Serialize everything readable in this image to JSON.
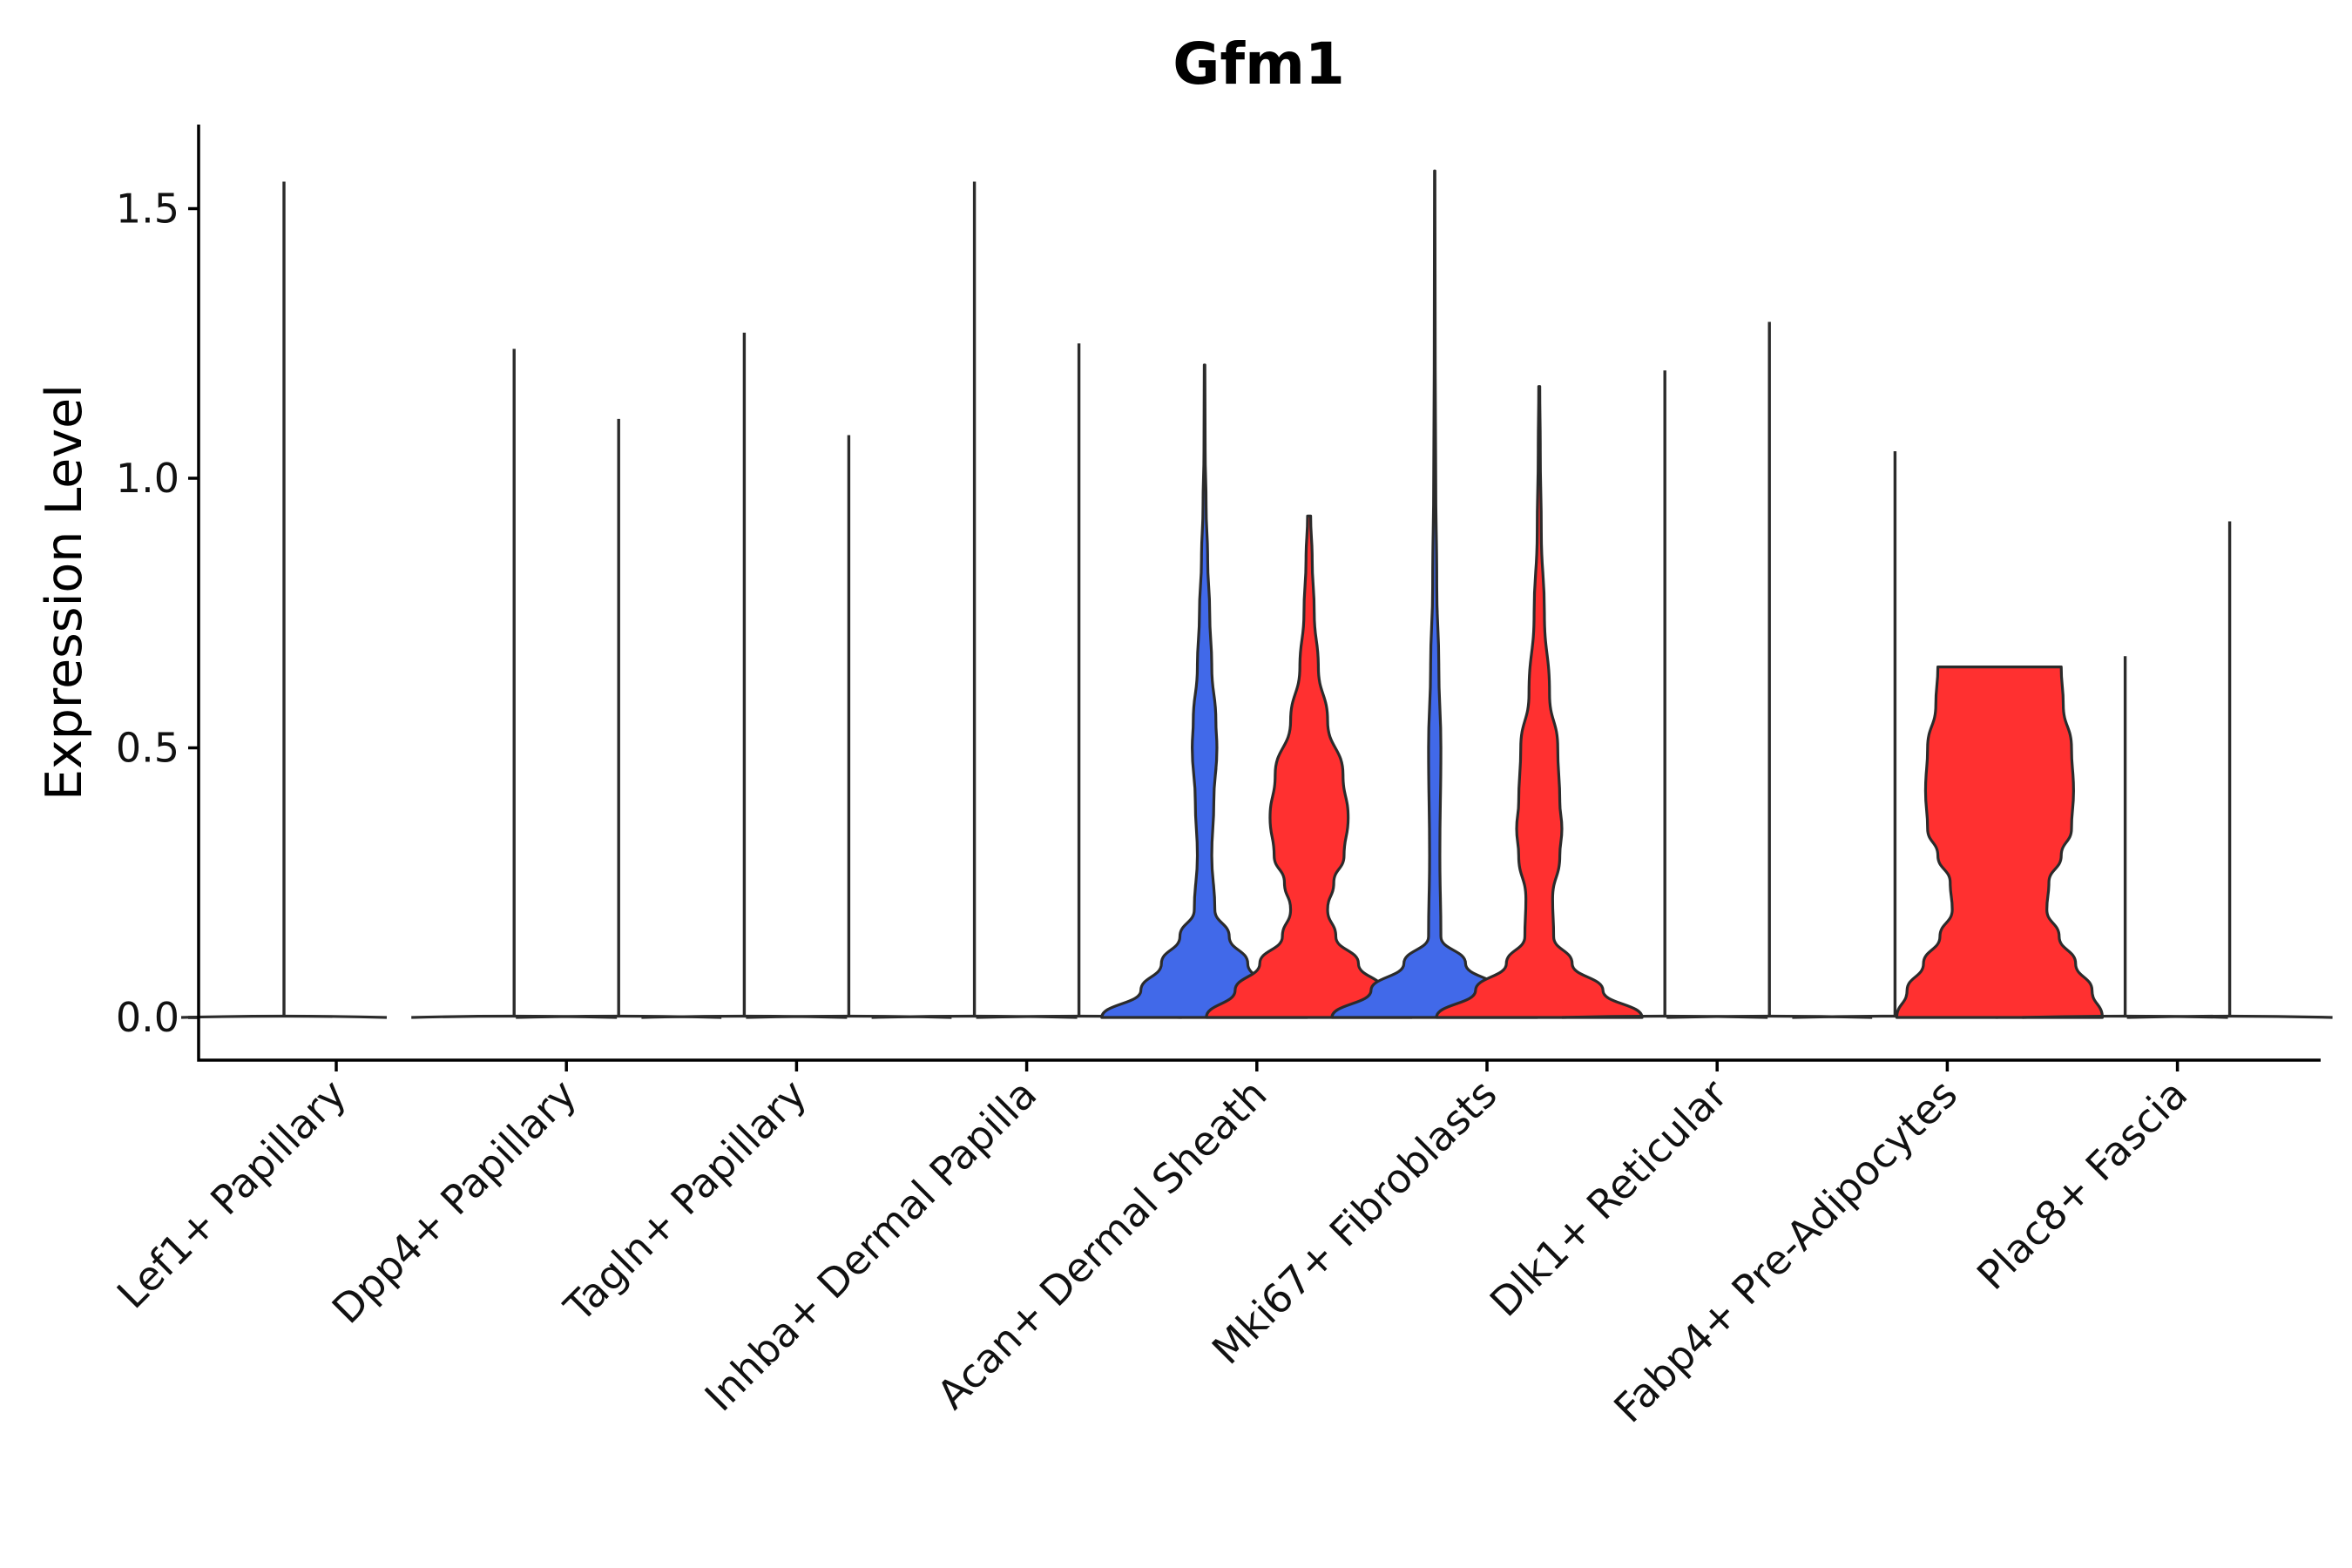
{
  "chart_data": {
    "type": "violin",
    "title": "Gfm1",
    "xlabel": "",
    "ylabel": "Expression Level",
    "ylim": [
      -0.08,
      1.66
    ],
    "yticks": [
      0.0,
      0.5,
      1.0,
      1.5
    ],
    "ytick_labels": [
      "0.0",
      "0.5",
      "1.0",
      "1.5"
    ],
    "categories": [
      "Lef1+ Papillary",
      "Dpp4+ Papillary",
      "Tagln+ Papillary",
      "Inhba+ Dermal Papilla",
      "Acan+ Dermal Sheath",
      "Mki67+ Fibroblasts",
      "Dlk1+ Reticular",
      "Fabp4+ Pre-Adipocytes",
      "Plac8+ Fascia"
    ],
    "groups": [
      {
        "name": "group-1",
        "color": "#4169E9"
      },
      {
        "name": "group-2",
        "color": "#FF3030"
      }
    ],
    "violins": [
      {
        "category": "Lef1+ Papillary",
        "group": "group-1",
        "max": 1.55,
        "profile": []
      },
      {
        "category": "Dpp4+ Papillary",
        "group": "group-1",
        "max": 1.24,
        "profile": []
      },
      {
        "category": "Dpp4+ Papillary",
        "group": "group-2",
        "max": 1.11,
        "profile": []
      },
      {
        "category": "Tagln+ Papillary",
        "group": "group-1",
        "max": 1.27,
        "profile": []
      },
      {
        "category": "Tagln+ Papillary",
        "group": "group-2",
        "max": 1.08,
        "profile": []
      },
      {
        "category": "Inhba+ Dermal Papilla",
        "group": "group-1",
        "max": 1.55,
        "profile": []
      },
      {
        "category": "Inhba+ Dermal Papilla",
        "group": "group-2",
        "max": 1.25,
        "profile": []
      },
      {
        "category": "Acan+ Dermal Sheath",
        "group": "group-1",
        "max": 1.21,
        "profile": [
          [
            0.0,
            1.0
          ],
          [
            0.05,
            0.62
          ],
          [
            0.1,
            0.42
          ],
          [
            0.15,
            0.24
          ],
          [
            0.2,
            0.1
          ],
          [
            0.3,
            0.07
          ],
          [
            0.4,
            0.09
          ],
          [
            0.5,
            0.12
          ],
          [
            0.55,
            0.11
          ],
          [
            0.65,
            0.07
          ],
          [
            0.75,
            0.05
          ],
          [
            0.85,
            0.03
          ],
          [
            0.95,
            0.015
          ],
          [
            1.05,
            0.006
          ],
          [
            1.21,
            0.003
          ]
        ]
      },
      {
        "category": "Acan+ Dermal Sheath",
        "group": "group-2",
        "max": 0.93,
        "profile": [
          [
            0.0,
            1.0
          ],
          [
            0.05,
            0.72
          ],
          [
            0.1,
            0.48
          ],
          [
            0.15,
            0.26
          ],
          [
            0.2,
            0.18
          ],
          [
            0.25,
            0.24
          ],
          [
            0.3,
            0.34
          ],
          [
            0.37,
            0.38
          ],
          [
            0.45,
            0.33
          ],
          [
            0.55,
            0.18
          ],
          [
            0.65,
            0.09
          ],
          [
            0.75,
            0.05
          ],
          [
            0.85,
            0.03
          ],
          [
            0.93,
            0.015
          ]
        ]
      },
      {
        "category": "Mki67+ Fibroblasts",
        "group": "group-1",
        "max": 1.57,
        "profile": [
          [
            0.0,
            1.0
          ],
          [
            0.05,
            0.62
          ],
          [
            0.1,
            0.3
          ],
          [
            0.15,
            0.06
          ],
          [
            0.3,
            0.05
          ],
          [
            0.5,
            0.06
          ],
          [
            0.65,
            0.04
          ],
          [
            0.8,
            0.02
          ],
          [
            1.0,
            0.01
          ],
          [
            1.2,
            0.005
          ],
          [
            1.57,
            0.002
          ]
        ]
      },
      {
        "category": "Mki67+ Fibroblasts",
        "group": "group-2",
        "max": 1.17,
        "profile": [
          [
            0.0,
            1.0
          ],
          [
            0.05,
            0.62
          ],
          [
            0.1,
            0.32
          ],
          [
            0.15,
            0.14
          ],
          [
            0.22,
            0.13
          ],
          [
            0.3,
            0.2
          ],
          [
            0.35,
            0.22
          ],
          [
            0.4,
            0.2
          ],
          [
            0.5,
            0.18
          ],
          [
            0.6,
            0.1
          ],
          [
            0.75,
            0.05
          ],
          [
            0.9,
            0.02
          ],
          [
            1.05,
            0.01
          ],
          [
            1.17,
            0.005
          ]
        ]
      },
      {
        "category": "Dlk1+ Reticular",
        "group": "group-1",
        "max": 1.2,
        "profile": []
      },
      {
        "category": "Dlk1+ Reticular",
        "group": "group-2",
        "max": 1.29,
        "profile": []
      },
      {
        "category": "Fabp4+ Pre-Adipocytes",
        "group": "group-1",
        "max": 1.05,
        "profile": []
      },
      {
        "category": "Fabp4+ Pre-Adipocytes",
        "group": "group-2",
        "max": 0.65,
        "profile": [
          [
            0.0,
            1.0
          ],
          [
            0.05,
            0.9
          ],
          [
            0.1,
            0.74
          ],
          [
            0.15,
            0.58
          ],
          [
            0.2,
            0.46
          ],
          [
            0.25,
            0.48
          ],
          [
            0.3,
            0.6
          ],
          [
            0.35,
            0.7
          ],
          [
            0.42,
            0.72
          ],
          [
            0.5,
            0.7
          ],
          [
            0.58,
            0.62
          ],
          [
            0.65,
            0.6
          ]
        ]
      },
      {
        "category": "Plac8+ Fascia",
        "group": "group-1",
        "max": 0.67,
        "profile": []
      },
      {
        "category": "Plac8+ Fascia",
        "group": "group-2",
        "max": 0.92,
        "profile": []
      }
    ]
  }
}
